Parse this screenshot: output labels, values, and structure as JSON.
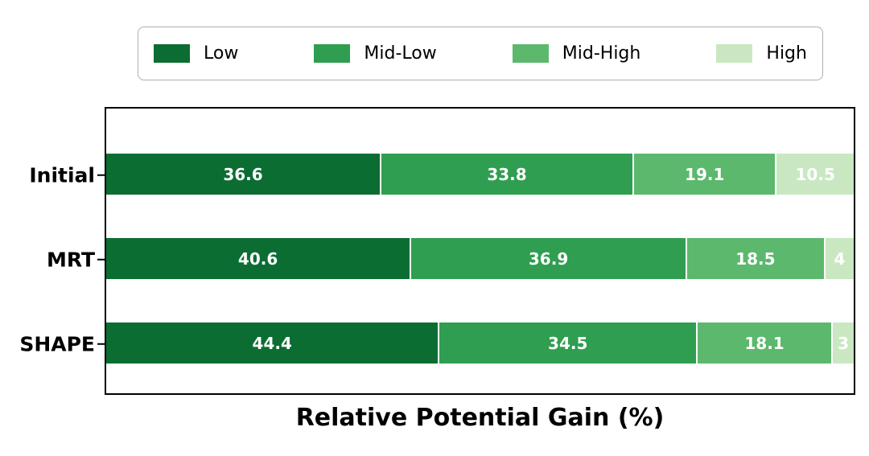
{
  "chart_data": {
    "type": "bar",
    "orientation": "horizontal",
    "stacked": true,
    "xlabel": "Relative Potential Gain (%)",
    "categories": [
      "Initial",
      "MRT",
      "SHAPE"
    ],
    "series": [
      {
        "name": "Low",
        "color": "#0c6d33",
        "values": [
          36.6,
          40.6,
          44.4
        ],
        "display_labels": [
          "36.6",
          "40.6",
          "44.4"
        ]
      },
      {
        "name": "Mid-Low",
        "color": "#2f9e50",
        "values": [
          33.8,
          36.9,
          34.5
        ],
        "display_labels": [
          "33.8",
          "36.9",
          "34.5"
        ]
      },
      {
        "name": "Mid-High",
        "color": "#5cb86d",
        "values": [
          19.1,
          18.5,
          18.1
        ],
        "display_labels": [
          "19.1",
          "18.5",
          "18.1"
        ]
      },
      {
        "name": "High",
        "color": "#c9e8c2",
        "values": [
          10.5,
          4.0,
          3.0
        ],
        "display_labels": [
          "10.5",
          "4",
          "3"
        ]
      }
    ],
    "xlim": [
      0,
      100
    ],
    "legend_position": "top",
    "value_label_color": "#ffffff",
    "grid": false
  }
}
